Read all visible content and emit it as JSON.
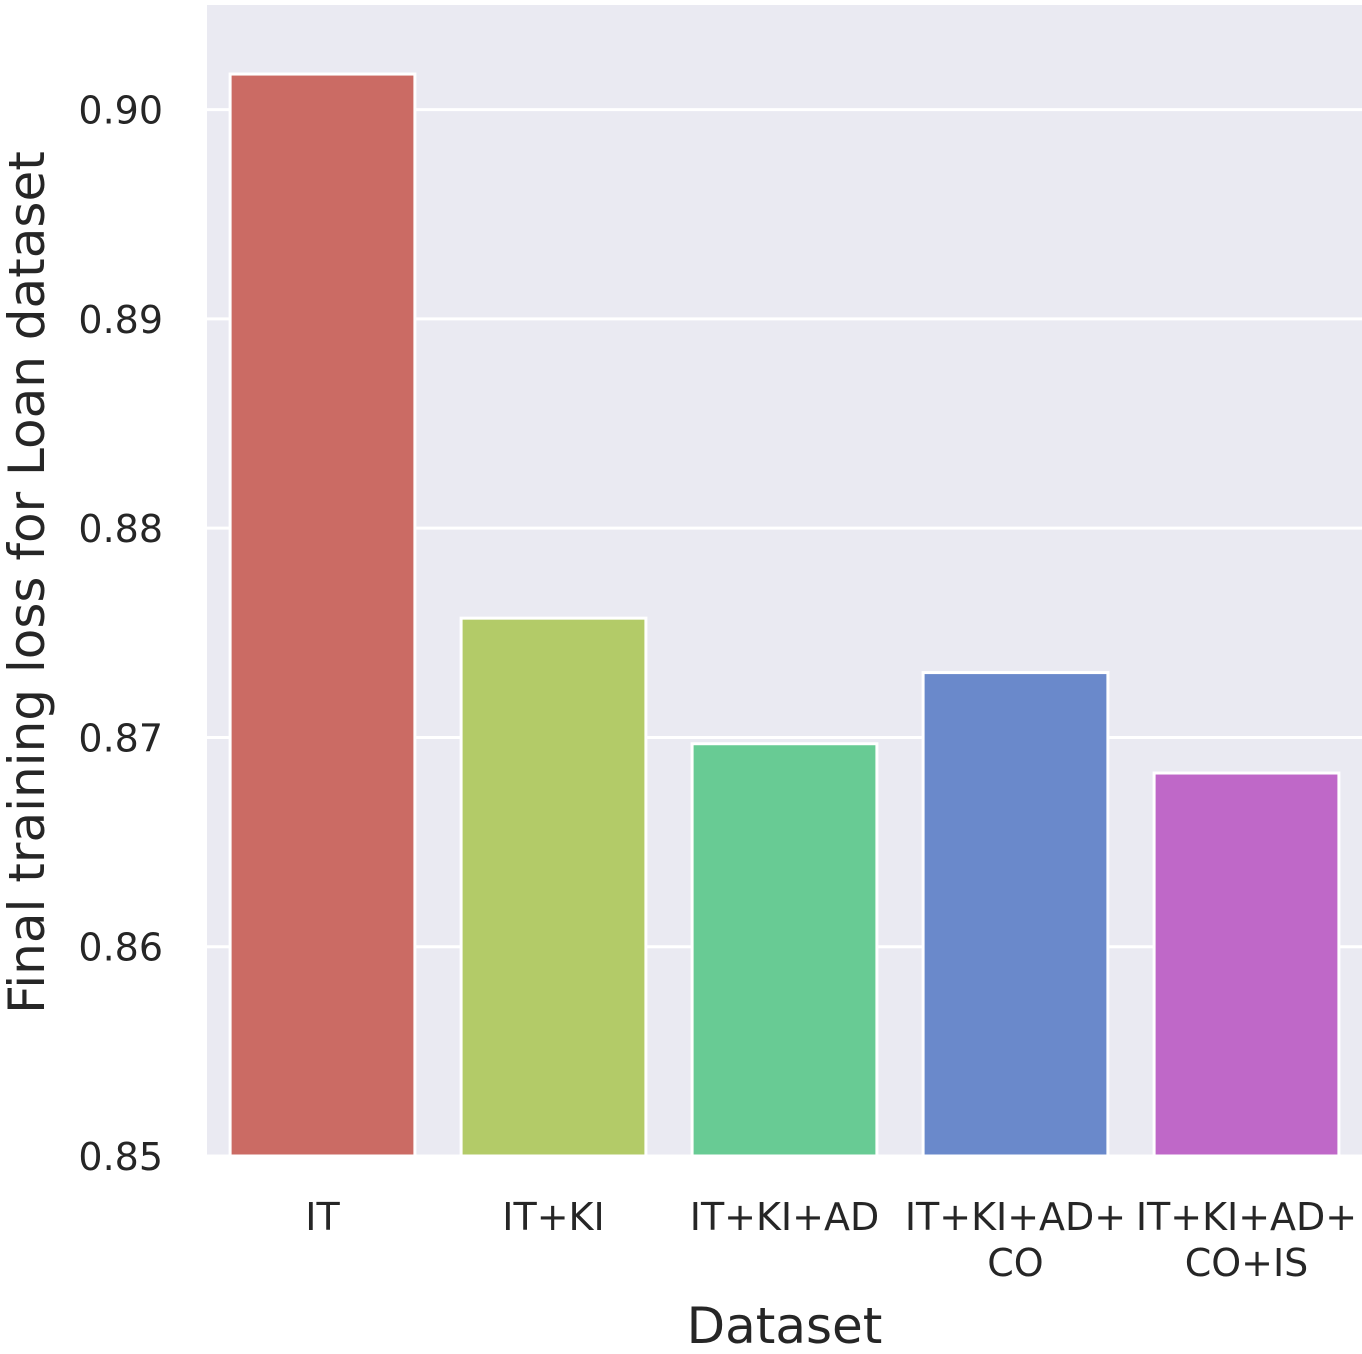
{
  "chart_data": {
    "type": "bar",
    "title": "",
    "xlabel": "Dataset",
    "ylabel": "Final training loss for Loan dataset",
    "categories": [
      [
        "IT"
      ],
      [
        "IT+KI"
      ],
      [
        "IT+KI+AD"
      ],
      [
        "IT+KI+AD+",
        "CO"
      ],
      [
        "IT+KI+AD+",
        "CO+IS"
      ]
    ],
    "values": [
      0.9017,
      0.8757,
      0.8697,
      0.8731,
      0.8683
    ],
    "colors": [
      "#cb6b64",
      "#b3cb68",
      "#68cb94",
      "#6a89cb",
      "#bf68c8"
    ],
    "ylim": [
      0.85,
      0.905
    ],
    "yticks": [
      0.85,
      0.86,
      0.87,
      0.88,
      0.89,
      0.9
    ],
    "ytick_labels": [
      "0.85",
      "0.86",
      "0.87",
      "0.88",
      "0.89",
      "0.90"
    ],
    "grid": true,
    "background": "#eaeaf2",
    "grid_color": "#ffffff"
  }
}
